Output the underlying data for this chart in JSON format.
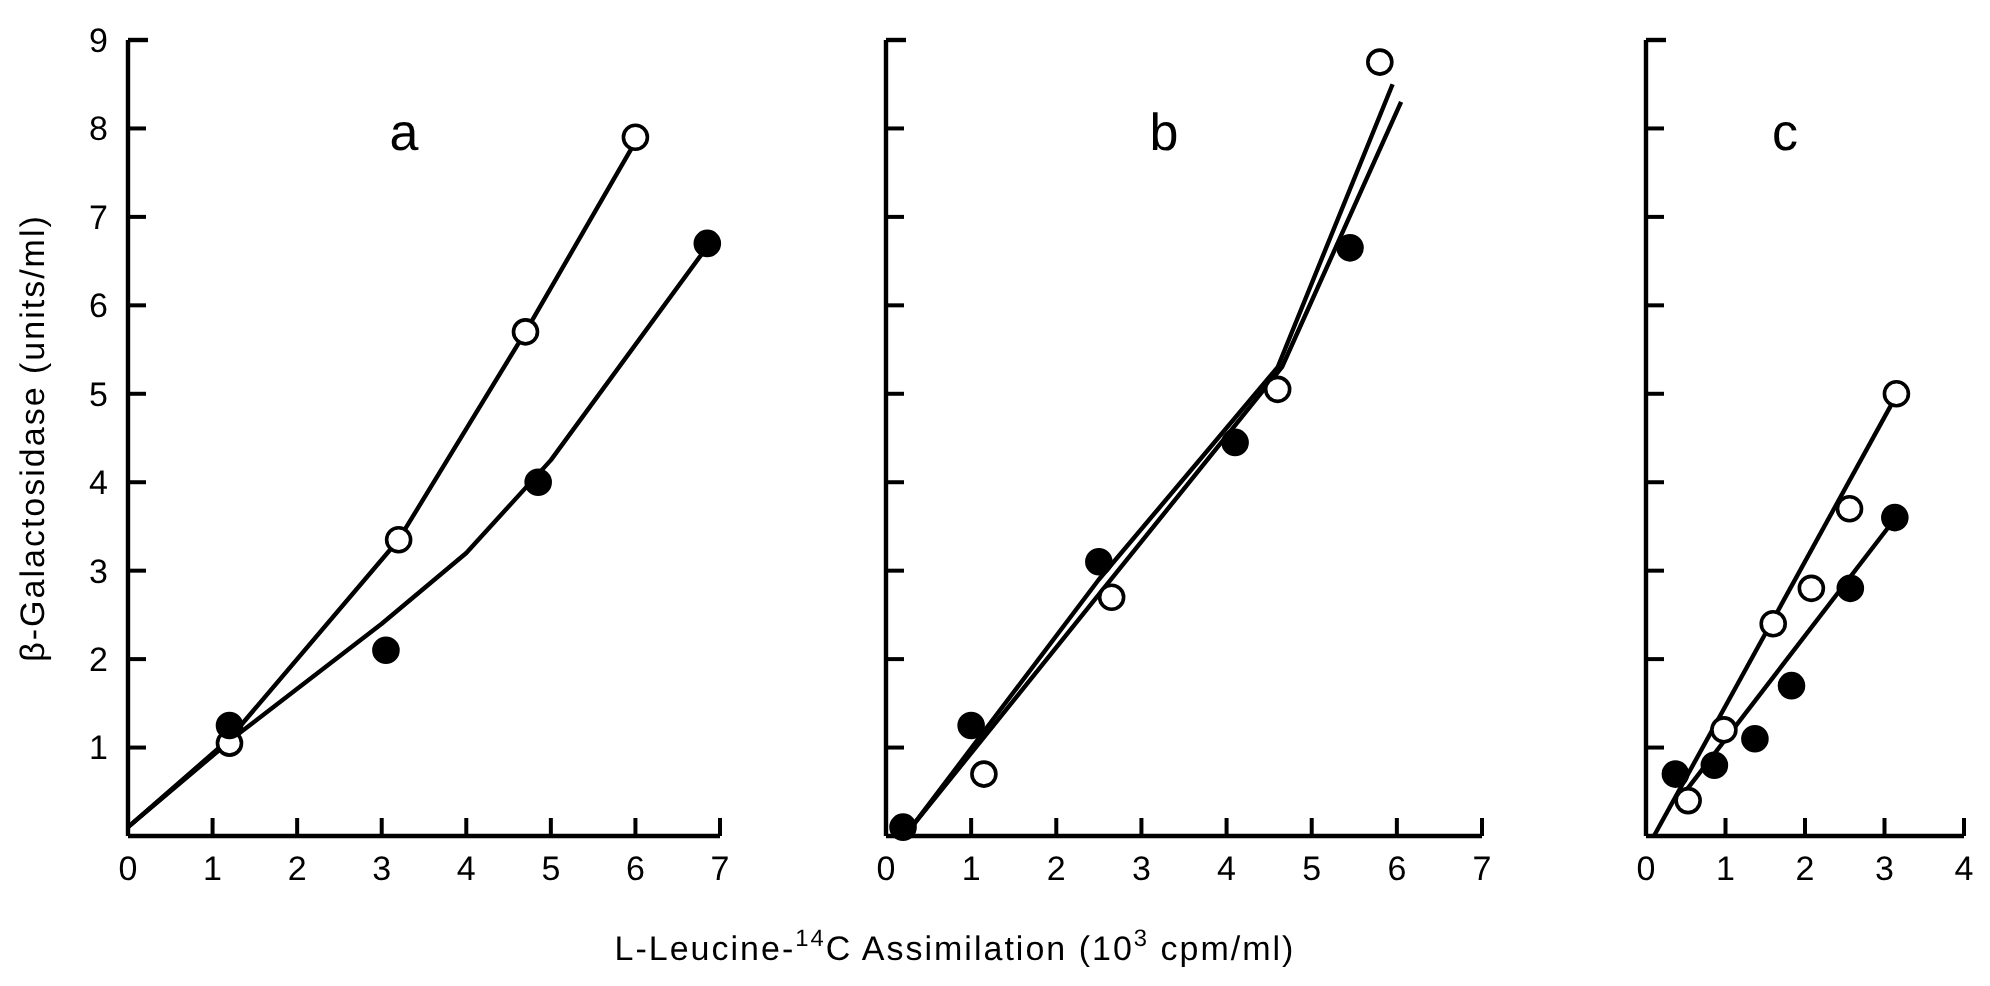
{
  "chart_data": [
    {
      "type": "scatter",
      "title": "a",
      "ylabel": "β-Galactosidase (units/ml)",
      "xlim": [
        0,
        7
      ],
      "xticks": [
        0,
        1,
        2,
        3,
        4,
        5,
        6,
        7
      ],
      "ylim": [
        0,
        9
      ],
      "yticks": [
        1,
        2,
        3,
        4,
        5,
        6,
        7,
        8,
        9
      ],
      "series": [
        {
          "type": "line",
          "color": "#000000",
          "x": [
            0,
            1.2,
            3.2,
            4.7,
            6.0
          ],
          "values": [
            0.1,
            1.1,
            3.35,
            5.7,
            7.85
          ]
        },
        {
          "type": "line",
          "color": "#000000",
          "x": [
            0,
            1.3,
            3.0,
            4.0,
            5.0,
            6.8
          ],
          "values": [
            0.1,
            1.15,
            2.4,
            3.2,
            4.25,
            6.6
          ]
        },
        {
          "type": "scatter",
          "marker": "circle",
          "color": "#ffffff",
          "x": [
            1.2,
            3.2,
            4.7,
            6.0
          ],
          "values": [
            1.05,
            3.35,
            5.7,
            7.9
          ]
        },
        {
          "type": "scatter",
          "marker": "circle",
          "color": "#000000",
          "x": [
            1.2,
            3.05,
            4.85,
            6.85
          ],
          "values": [
            1.25,
            2.1,
            4.0,
            6.7
          ]
        }
      ]
    },
    {
      "type": "scatter",
      "title": "b",
      "xlabel": "L-Leucine-$^{14}$C Assimilation (10$^{3}$ cpm/ml)",
      "xlim": [
        0,
        7
      ],
      "xticks": [
        0,
        1,
        2,
        3,
        4,
        5,
        6,
        7
      ],
      "ylim": [
        0,
        9
      ],
      "yticks": [
        {
          "value": 1,
          "label": null
        },
        {
          "value": 2,
          "label": null
        },
        {
          "value": 3,
          "label": null
        },
        {
          "value": 4,
          "label": null
        },
        {
          "value": 5,
          "label": null
        },
        {
          "value": 6,
          "label": null
        },
        {
          "value": 7,
          "label": null
        },
        {
          "value": 8,
          "label": null
        },
        {
          "value": 9,
          "label": null
        }
      ],
      "tick_labels": "x",
      "series": [
        {
          "type": "line",
          "color": "#000000",
          "x": [
            0.3,
            2.5,
            4.6,
            5.95
          ],
          "values": [
            0.1,
            2.9,
            5.3,
            8.5
          ]
        },
        {
          "type": "line",
          "color": "#000000",
          "x": [
            0.3,
            2.6,
            4.65,
            6.05
          ],
          "values": [
            0.1,
            2.85,
            5.3,
            8.3
          ]
        },
        {
          "type": "scatter",
          "marker": "circle",
          "color": "#ffffff",
          "x": [
            1.15,
            2.65,
            4.6,
            5.8
          ],
          "values": [
            0.7,
            2.7,
            5.05,
            8.75
          ]
        },
        {
          "type": "scatter",
          "marker": "circle",
          "color": "#000000",
          "x": [
            0.2,
            1.0,
            2.5,
            4.1,
            5.45
          ],
          "values": [
            0.1,
            1.25,
            3.1,
            4.45,
            6.65
          ]
        }
      ]
    },
    {
      "type": "scatter",
      "title": "c",
      "xlim": [
        0,
        4
      ],
      "xticks": [
        0,
        1,
        2,
        3,
        4
      ],
      "ylim": [
        0,
        9
      ],
      "yticks": [
        {
          "value": 1,
          "label": null
        },
        {
          "value": 2,
          "label": null
        },
        {
          "value": 3,
          "label": null
        },
        {
          "value": 4,
          "label": null
        },
        {
          "value": 5,
          "label": null
        },
        {
          "value": 6,
          "label": null
        },
        {
          "value": 7,
          "label": null
        },
        {
          "value": 8,
          "label": null
        },
        {
          "value": 9,
          "label": null
        }
      ],
      "tick_labels": "x",
      "series": [
        {
          "type": "line",
          "color": "#000000",
          "x": [
            0.1,
            3.1
          ],
          "values": [
            0,
            4.9
          ]
        },
        {
          "type": "line",
          "color": "#000000",
          "x": [
            0.45,
            3.1
          ],
          "values": [
            0.45,
            3.55
          ]
        },
        {
          "type": "scatter",
          "marker": "circle",
          "color": "#ffffff",
          "x": [
            0.53,
            0.98,
            1.6,
            2.08,
            2.56,
            3.15
          ],
          "values": [
            0.4,
            1.2,
            2.4,
            2.8,
            3.7,
            5.0
          ]
        },
        {
          "type": "scatter",
          "marker": "circle",
          "color": "#000000",
          "x": [
            0.37,
            0.86,
            1.37,
            1.83,
            2.57,
            3.13
          ],
          "values": [
            0.7,
            0.8,
            1.1,
            1.7,
            2.8,
            3.6
          ]
        }
      ]
    }
  ]
}
